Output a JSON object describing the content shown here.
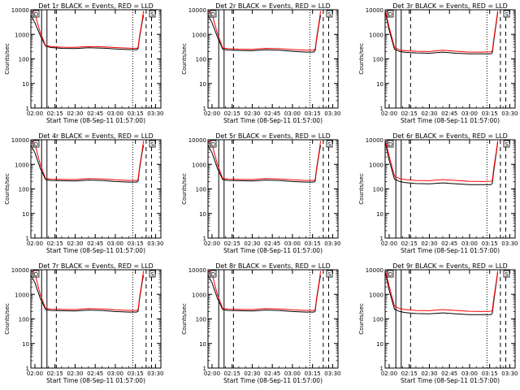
{
  "chart_data": {
    "type": "line",
    "yscale": "log",
    "ylim": [
      1,
      10000
    ],
    "ylabel": "Counts/sec",
    "xlabel": "Start Time (08-Sep-11 01:57:00)",
    "x_tick_labels": [
      "02:00",
      "02:15",
      "02:30",
      "02:45",
      "03:00",
      "03:15",
      "03:30"
    ],
    "y_tick_labels": [
      "1",
      "10",
      "100",
      "1000",
      "10000"
    ],
    "colors": {
      "events": "#000000",
      "lld": "#ff0000",
      "axes": "#000000"
    },
    "panels": [
      {
        "title": "Det 1r BLACK = Events, RED = LLD",
        "markers": [
          "D",
          "S"
        ],
        "events_x": [
          "01:57",
          "02:00",
          "02:04",
          "02:08",
          "02:12",
          "02:20",
          "02:30",
          "02:40",
          "02:50",
          "03:00",
          "03:10",
          "03:16",
          "03:17",
          "03:18",
          "03:20",
          "03:21"
        ],
        "events": [
          6000,
          3000,
          900,
          330,
          290,
          270,
          265,
          285,
          275,
          255,
          240,
          235,
          270,
          700,
          3000,
          6000
        ],
        "lld_x": [
          "01:57",
          "02:00",
          "02:04",
          "02:08",
          "02:12",
          "02:20",
          "02:30",
          "02:40",
          "02:50",
          "03:00",
          "03:10",
          "03:16",
          "03:17",
          "03:18",
          "03:20",
          "03:21"
        ],
        "lld": [
          9000,
          7000,
          1200,
          350,
          320,
          300,
          295,
          320,
          310,
          290,
          275,
          270,
          300,
          800,
          3500,
          9000
        ]
      },
      {
        "title": "Det 2r BLACK = Events, RED = LLD",
        "markers": [
          "D",
          "S"
        ],
        "events_x": [
          "01:57",
          "02:00",
          "02:04",
          "02:08",
          "02:12",
          "02:20",
          "02:30",
          "02:40",
          "02:50",
          "03:00",
          "03:10",
          "03:16",
          "03:17",
          "03:18",
          "03:20",
          "03:21"
        ],
        "events": [
          6000,
          3000,
          800,
          250,
          230,
          220,
          215,
          235,
          225,
          205,
          190,
          190,
          220,
          600,
          3000,
          6000
        ],
        "lld_x": [
          "01:57",
          "02:00",
          "02:04",
          "02:08",
          "02:12",
          "02:20",
          "02:30",
          "02:40",
          "02:50",
          "03:00",
          "03:10",
          "03:16",
          "03:17",
          "03:18",
          "03:20",
          "03:21"
        ],
        "lld": [
          9000,
          7000,
          1100,
          280,
          260,
          250,
          245,
          270,
          260,
          240,
          225,
          225,
          260,
          700,
          3500,
          9000
        ]
      },
      {
        "title": "Det 3r BLACK = Events, RED = LLD",
        "markers": [
          "D",
          "S"
        ],
        "events_x": [
          "01:57",
          "02:00",
          "02:04",
          "02:08",
          "02:12",
          "02:20",
          "02:30",
          "02:40",
          "02:50",
          "03:00",
          "03:10",
          "03:16",
          "03:17",
          "03:18",
          "03:20",
          "03:21"
        ],
        "events": [
          9000,
          1500,
          250,
          200,
          185,
          175,
          170,
          190,
          170,
          160,
          160,
          160,
          180,
          500,
          3000,
          8000
        ],
        "lld_x": [
          "01:57",
          "02:00",
          "02:04",
          "02:08",
          "02:12",
          "02:20",
          "02:30",
          "02:40",
          "02:50",
          "03:00",
          "03:10",
          "03:16",
          "03:17",
          "03:18",
          "03:20",
          "03:21"
        ],
        "lld": [
          10000,
          2000,
          300,
          230,
          215,
          205,
          200,
          225,
          205,
          190,
          190,
          195,
          215,
          600,
          3500,
          9000
        ]
      },
      {
        "title": "Det 4r BLACK = Events, RED = LLD",
        "markers": [
          "D",
          "S"
        ],
        "events_x": [
          "01:57",
          "02:00",
          "02:04",
          "02:08",
          "02:12",
          "02:20",
          "02:30",
          "02:40",
          "02:50",
          "03:00",
          "03:10",
          "03:16",
          "03:17",
          "03:18",
          "03:20",
          "03:21"
        ],
        "events": [
          6000,
          3000,
          700,
          240,
          220,
          215,
          210,
          230,
          220,
          200,
          190,
          190,
          210,
          600,
          3000,
          6000
        ],
        "lld_x": [
          "01:57",
          "02:00",
          "02:04",
          "02:08",
          "02:12",
          "02:20",
          "02:30",
          "02:40",
          "02:50",
          "03:00",
          "03:10",
          "03:16",
          "03:17",
          "03:18",
          "03:20",
          "03:21"
        ],
        "lld": [
          9000,
          7000,
          1000,
          270,
          250,
          245,
          240,
          265,
          255,
          235,
          220,
          220,
          245,
          700,
          3500,
          9000
        ]
      },
      {
        "title": "Det 5r BLACK = Events, RED = LLD",
        "markers": [
          "D",
          "S"
        ],
        "events_x": [
          "01:57",
          "02:00",
          "02:04",
          "02:08",
          "02:12",
          "02:20",
          "02:30",
          "02:40",
          "02:50",
          "03:00",
          "03:10",
          "03:16",
          "03:17",
          "03:18",
          "03:20",
          "03:21"
        ],
        "events": [
          6000,
          3000,
          700,
          240,
          220,
          215,
          210,
          230,
          220,
          200,
          190,
          190,
          210,
          600,
          3000,
          6000
        ],
        "lld_x": [
          "01:57",
          "02:00",
          "02:04",
          "02:08",
          "02:12",
          "02:20",
          "02:30",
          "02:40",
          "02:50",
          "03:00",
          "03:10",
          "03:16",
          "03:17",
          "03:18",
          "03:20",
          "03:21"
        ],
        "lld": [
          9000,
          7000,
          1000,
          270,
          250,
          245,
          240,
          265,
          255,
          235,
          220,
          220,
          245,
          700,
          3500,
          9000
        ]
      },
      {
        "title": "Det 6r BLACK = Events, RED = LLD",
        "markers": [
          "D",
          "S"
        ],
        "events_x": [
          "01:57",
          "02:00",
          "02:04",
          "02:08",
          "02:12",
          "02:20",
          "02:30",
          "02:40",
          "02:50",
          "03:00",
          "03:10",
          "03:16",
          "03:17",
          "03:18",
          "03:20",
          "03:21"
        ],
        "events": [
          9000,
          1500,
          250,
          200,
          180,
          165,
          160,
          175,
          160,
          150,
          150,
          150,
          170,
          500,
          3000,
          8000
        ],
        "lld_x": [
          "01:57",
          "02:00",
          "02:04",
          "02:08",
          "02:12",
          "02:20",
          "02:30",
          "02:40",
          "02:50",
          "03:00",
          "03:10",
          "03:16",
          "03:17",
          "03:18",
          "03:20",
          "03:21"
        ],
        "lld": [
          10000,
          2200,
          330,
          260,
          240,
          220,
          215,
          240,
          220,
          205,
          200,
          205,
          225,
          650,
          3500,
          9000
        ]
      },
      {
        "title": "Det 7r BLACK = Events, RED = LLD",
        "markers": [
          "D",
          "S"
        ],
        "events_x": [
          "01:57",
          "02:00",
          "02:04",
          "02:08",
          "02:12",
          "02:20",
          "02:30",
          "02:40",
          "02:50",
          "03:00",
          "03:10",
          "03:16",
          "03:17",
          "03:18",
          "03:20",
          "03:21"
        ],
        "events": [
          6000,
          3000,
          700,
          240,
          220,
          215,
          210,
          230,
          220,
          200,
          190,
          190,
          210,
          600,
          3000,
          6000
        ],
        "lld_x": [
          "01:57",
          "02:00",
          "02:04",
          "02:08",
          "02:12",
          "02:20",
          "02:30",
          "02:40",
          "02:50",
          "03:00",
          "03:10",
          "03:16",
          "03:17",
          "03:18",
          "03:20",
          "03:21"
        ],
        "lld": [
          9000,
          7000,
          1000,
          270,
          250,
          245,
          240,
          265,
          255,
          235,
          220,
          220,
          245,
          700,
          3500,
          9000
        ]
      },
      {
        "title": "Det 8r BLACK = Events, RED = LLD",
        "markers": [
          "D",
          "S"
        ],
        "events_x": [
          "01:57",
          "02:00",
          "02:04",
          "02:08",
          "02:12",
          "02:20",
          "02:30",
          "02:40",
          "02:50",
          "03:00",
          "03:10",
          "03:16",
          "03:17",
          "03:18",
          "03:20",
          "03:21"
        ],
        "events": [
          6000,
          3000,
          700,
          240,
          220,
          215,
          210,
          230,
          220,
          200,
          190,
          190,
          210,
          600,
          3000,
          6000
        ],
        "lld_x": [
          "01:57",
          "02:00",
          "02:04",
          "02:08",
          "02:12",
          "02:20",
          "02:30",
          "02:40",
          "02:50",
          "03:00",
          "03:10",
          "03:16",
          "03:17",
          "03:18",
          "03:20",
          "03:21"
        ],
        "lld": [
          9000,
          7000,
          1000,
          270,
          250,
          245,
          240,
          265,
          255,
          235,
          220,
          220,
          245,
          700,
          3500,
          9000
        ]
      },
      {
        "title": "Det 9r BLACK = Events, RED = LLD",
        "markers": [
          "D",
          "S"
        ],
        "events_x": [
          "01:57",
          "02:00",
          "02:04",
          "02:08",
          "02:12",
          "02:20",
          "02:30",
          "02:40",
          "02:50",
          "03:00",
          "03:10",
          "03:16",
          "03:17",
          "03:18",
          "03:20",
          "03:21"
        ],
        "events": [
          9000,
          1500,
          250,
          200,
          180,
          165,
          160,
          175,
          160,
          150,
          150,
          150,
          170,
          500,
          3000,
          8000
        ],
        "lld_x": [
          "01:57",
          "02:00",
          "02:04",
          "02:08",
          "02:12",
          "02:20",
          "02:30",
          "02:40",
          "02:50",
          "03:00",
          "03:10",
          "03:16",
          "03:17",
          "03:18",
          "03:20",
          "03:21"
        ],
        "lld": [
          10000,
          2200,
          330,
          260,
          240,
          220,
          215,
          240,
          220,
          205,
          200,
          205,
          225,
          650,
          3500,
          9000
        ]
      }
    ]
  }
}
